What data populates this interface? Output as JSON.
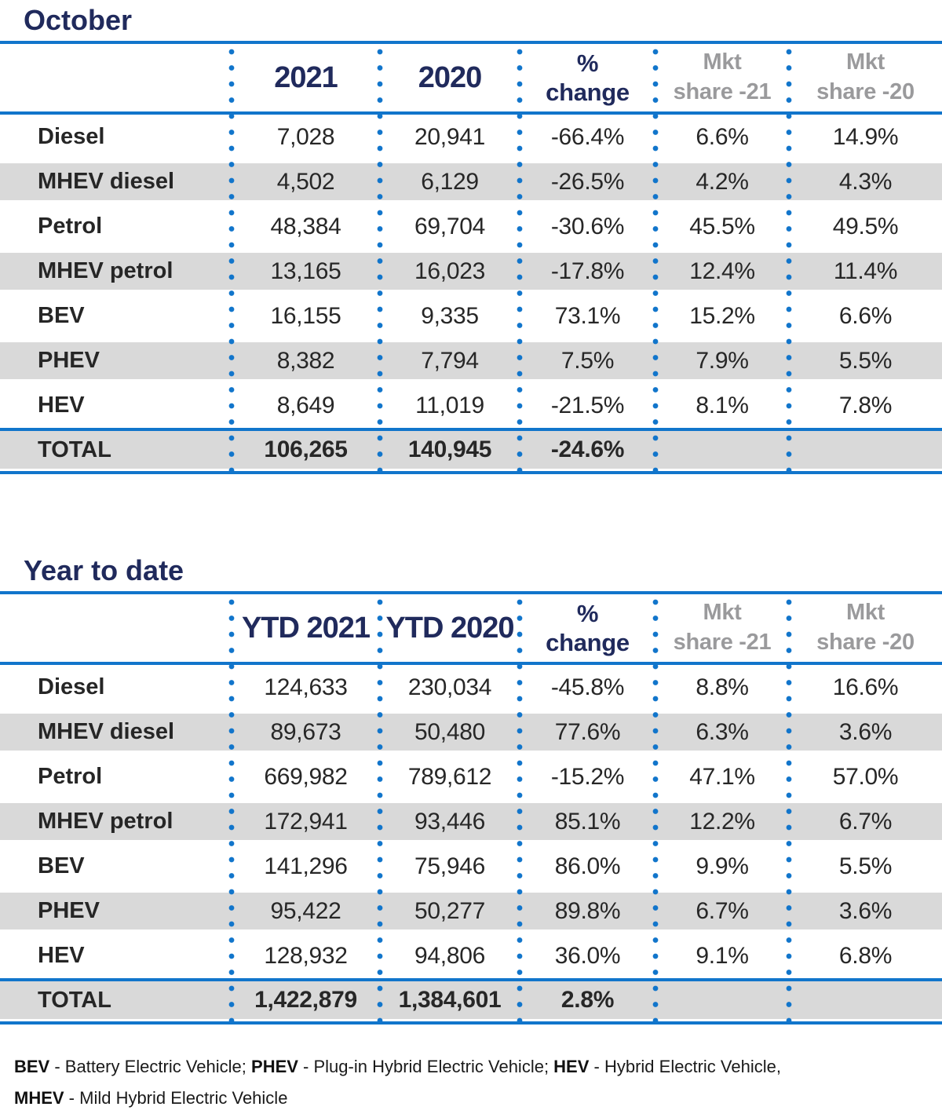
{
  "colors": {
    "accent_blue": "#1175cb",
    "navy_heading": "#202a5c",
    "muted_header_gray": "#9a9a9c",
    "stripe_gray": "#d9d9d9",
    "body_text": "#272727"
  },
  "chart_data": [
    {
      "type": "table",
      "title": "October",
      "columns": [
        "",
        "2021",
        "2020",
        "% change",
        "Mkt share -21",
        "Mkt share -20"
      ],
      "header_lines": [
        [],
        [
          "2021"
        ],
        [
          "2020"
        ],
        [
          "%",
          "change"
        ],
        [
          "Mkt",
          "share -21"
        ],
        [
          "Mkt",
          "share -20"
        ]
      ],
      "rows": [
        [
          "Diesel",
          "7,028",
          "20,941",
          "-66.4%",
          "6.6%",
          "14.9%"
        ],
        [
          "MHEV diesel",
          "4,502",
          "6,129",
          "-26.5%",
          "4.2%",
          "4.3%"
        ],
        [
          "Petrol",
          "48,384",
          "69,704",
          "-30.6%",
          "45.5%",
          "49.5%"
        ],
        [
          "MHEV petrol",
          "13,165",
          "16,023",
          "-17.8%",
          "12.4%",
          "11.4%"
        ],
        [
          "BEV",
          "16,155",
          "9,335",
          "73.1%",
          "15.2%",
          "6.6%"
        ],
        [
          "PHEV",
          "8,382",
          "7,794",
          "7.5%",
          "7.9%",
          "5.5%"
        ],
        [
          "HEV",
          "8,649",
          "11,019",
          "-21.5%",
          "8.1%",
          "7.8%"
        ]
      ],
      "total": [
        "TOTAL",
        "106,265",
        "140,945",
        "-24.6%",
        "",
        ""
      ]
    },
    {
      "type": "table",
      "title": "Year to date",
      "columns": [
        "",
        "YTD 2021",
        "YTD 2020",
        "% change",
        "Mkt share -21",
        "Mkt share -20"
      ],
      "header_lines": [
        [],
        [
          "YTD 2021"
        ],
        [
          "YTD 2020"
        ],
        [
          "%",
          "change"
        ],
        [
          "Mkt",
          "share -21"
        ],
        [
          "Mkt",
          "share -20"
        ]
      ],
      "rows": [
        [
          "Diesel",
          "124,633",
          "230,034",
          "-45.8%",
          "8.8%",
          "16.6%"
        ],
        [
          "MHEV diesel",
          "89,673",
          "50,480",
          "77.6%",
          "6.3%",
          "3.6%"
        ],
        [
          "Petrol",
          "669,982",
          "789,612",
          "-15.2%",
          "47.1%",
          "57.0%"
        ],
        [
          "MHEV petrol",
          "172,941",
          "93,446",
          "85.1%",
          "12.2%",
          "6.7%"
        ],
        [
          "BEV",
          "141,296",
          "75,946",
          "86.0%",
          "9.9%",
          "5.5%"
        ],
        [
          "PHEV",
          "95,422",
          "50,277",
          "89.8%",
          "6.7%",
          "3.6%"
        ],
        [
          "HEV",
          "128,932",
          "94,806",
          "36.0%",
          "9.1%",
          "6.8%"
        ]
      ],
      "total": [
        "TOTAL",
        "1,422,879",
        "1,384,601",
        "2.8%",
        "",
        ""
      ]
    }
  ],
  "footnote": {
    "segments": [
      {
        "bold": true,
        "text": "BEV"
      },
      {
        "bold": false,
        "text": " - Battery Electric Vehicle; "
      },
      {
        "bold": true,
        "text": "PHEV"
      },
      {
        "bold": false,
        "text": " - Plug-in Hybrid Electric Vehicle; "
      },
      {
        "bold": true,
        "text": "HEV"
      },
      {
        "bold": false,
        "text": " - Hybrid Electric Vehicle,"
      },
      {
        "br": true
      },
      {
        "bold": true,
        "text": "MHEV"
      },
      {
        "bold": false,
        "text": " - Mild Hybrid Electric Vehicle"
      }
    ]
  }
}
